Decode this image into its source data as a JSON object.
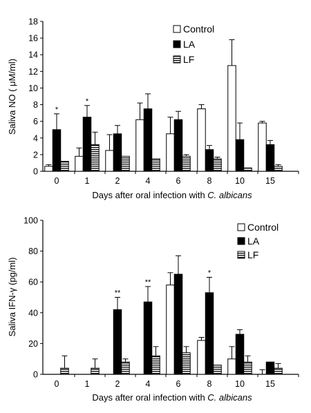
{
  "chart_data": [
    {
      "type": "bar",
      "ylabel": "Saliva NO ( μM/ml)",
      "xlabel_prefix": "Days after oral infection with ",
      "xlabel_italic": "C. albicans",
      "ylim": [
        0,
        18
      ],
      "yticks": [
        0,
        2,
        4,
        6,
        8,
        10,
        12,
        14,
        16,
        18
      ],
      "categories": [
        "0",
        "1",
        "2",
        "4",
        "6",
        "8",
        "10",
        "15"
      ],
      "series": [
        {
          "name": "Control",
          "fill": "white",
          "values": [
            0.6,
            1.8,
            2.5,
            6.2,
            4.5,
            7.5,
            12.7,
            5.8
          ],
          "errors": [
            0.2,
            1.0,
            1.9,
            2.0,
            2.0,
            0.5,
            3.1,
            0.2
          ]
        },
        {
          "name": "LA",
          "fill": "black",
          "values": [
            5.0,
            6.5,
            4.5,
            7.5,
            6.2,
            2.6,
            3.8,
            3.2
          ],
          "errors": [
            1.9,
            1.4,
            1.0,
            1.8,
            1.0,
            0.5,
            2.0,
            0.5
          ]
        },
        {
          "name": "LF",
          "fill": "striped",
          "values": [
            1.2,
            3.2,
            1.8,
            1.5,
            1.8,
            1.5,
            0.4,
            0.6
          ],
          "errors": [
            0.0,
            1.5,
            0.0,
            0.0,
            0.2,
            0.2,
            0.0,
            0.2
          ]
        }
      ],
      "annotations": [
        {
          "category": "0",
          "series": "LA",
          "text": "*"
        },
        {
          "category": "1",
          "series": "LA",
          "text": "*"
        }
      ]
    },
    {
      "type": "bar",
      "ylabel": "Saliva IFN-γ (pg/ml)",
      "xlabel_prefix": "Days after oral infection with ",
      "xlabel_italic": "C. albicans",
      "ylim": [
        0,
        100
      ],
      "yticks": [
        0,
        20,
        40,
        60,
        80,
        100
      ],
      "categories": [
        "0",
        "1",
        "2",
        "4",
        "6",
        "8",
        "10",
        "15"
      ],
      "series": [
        {
          "name": "Control",
          "fill": "white",
          "values": [
            0,
            0,
            0,
            0,
            58,
            22,
            10,
            0
          ],
          "errors": [
            0,
            0,
            0,
            0,
            8,
            2,
            8,
            3
          ]
        },
        {
          "name": "LA",
          "fill": "black",
          "values": [
            0,
            0,
            42,
            47,
            65,
            53,
            26,
            8
          ],
          "errors": [
            0,
            0,
            8,
            10,
            12,
            10,
            3,
            0
          ]
        },
        {
          "name": "LF",
          "fill": "striped",
          "values": [
            4,
            4,
            8,
            12,
            14,
            6,
            8,
            4
          ],
          "errors": [
            8,
            6,
            2,
            6,
            4,
            0,
            4,
            3
          ]
        }
      ],
      "annotations": [
        {
          "category": "2",
          "series": "LA",
          "text": "**"
        },
        {
          "category": "4",
          "series": "LA",
          "text": "**"
        },
        {
          "category": "8",
          "series": "LA",
          "text": "*"
        }
      ]
    }
  ]
}
